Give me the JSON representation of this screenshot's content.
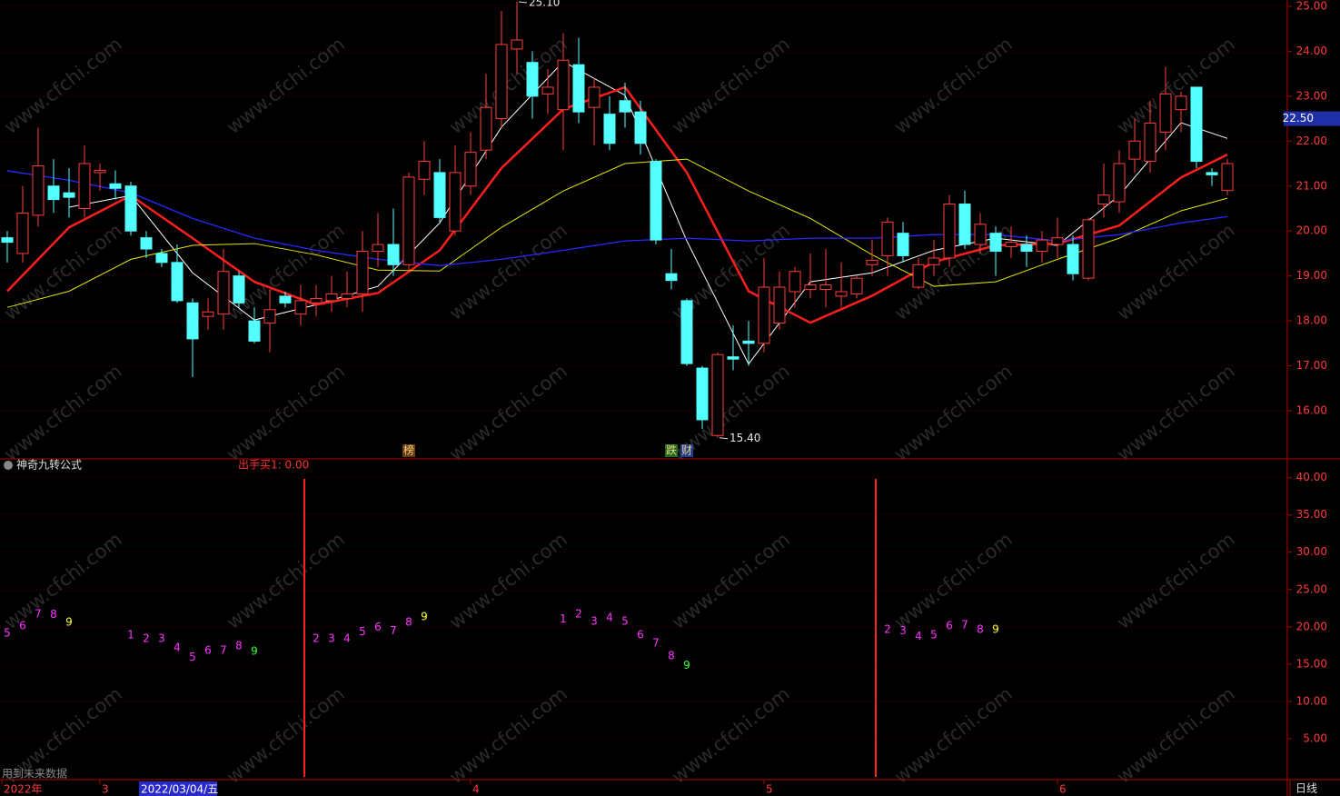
{
  "chart_data": [
    {
      "type": "candlestick",
      "open": [
        19.85,
        19.5,
        20.35,
        21.0,
        20.85,
        20.5,
        21.3,
        21.05,
        21.0,
        19.85,
        19.5,
        19.3,
        18.4,
        18.1,
        18.15,
        19.0,
        18.0,
        17.95,
        18.55,
        18.15,
        18.4,
        18.45,
        18.5,
        18.6,
        19.55,
        19.7,
        19.25,
        21.15,
        21.3,
        20.0,
        21.0,
        21.8,
        22.5,
        24.05,
        23.75,
        23.05,
        22.7,
        23.7,
        22.75,
        22.6,
        22.9,
        22.65,
        21.55,
        19.05,
        18.45,
        16.95,
        15.45,
        17.2,
        17.55,
        17.5,
        17.95,
        18.65,
        18.7,
        18.7,
        18.55,
        18.6,
        19.25,
        19.45,
        19.95,
        18.75,
        19.25,
        19.4,
        20.6,
        19.7,
        19.95,
        19.65,
        19.7,
        19.55,
        19.7,
        19.7,
        18.95,
        20.6,
        20.65,
        21.6,
        21.55,
        22.2,
        22.7,
        23.2,
        21.3,
        20.9
      ],
      "high": [
        20.0,
        21.0,
        22.3,
        21.6,
        21.4,
        21.9,
        21.5,
        21.35,
        21.1,
        20.0,
        19.6,
        19.7,
        18.5,
        18.5,
        19.6,
        19.1,
        18.3,
        18.7,
        18.65,
        18.8,
        18.8,
        19.0,
        19.1,
        20.0,
        20.4,
        20.5,
        21.3,
        22.0,
        21.6,
        21.9,
        22.2,
        23.5,
        24.9,
        25.1,
        24.0,
        23.6,
        24.4,
        24.3,
        23.4,
        23.0,
        23.3,
        22.9,
        21.6,
        19.6,
        18.5,
        17.0,
        17.3,
        17.9,
        18.0,
        19.4,
        19.1,
        19.2,
        19.5,
        19.6,
        19.3,
        19.0,
        19.8,
        20.3,
        20.2,
        19.4,
        19.8,
        20.8,
        20.9,
        20.4,
        20.1,
        20.1,
        19.9,
        20.0,
        20.3,
        19.9,
        20.3,
        21.5,
        21.8,
        22.5,
        22.9,
        23.65,
        23.1,
        23.2,
        21.4,
        21.6
      ],
      "low": [
        19.3,
        19.3,
        20.1,
        20.4,
        20.3,
        20.3,
        20.9,
        20.7,
        19.9,
        19.4,
        19.2,
        18.4,
        16.75,
        17.8,
        17.8,
        18.3,
        17.5,
        17.3,
        18.3,
        17.9,
        18.1,
        18.2,
        18.3,
        18.2,
        19.2,
        19.0,
        19.1,
        20.8,
        20.2,
        19.9,
        20.8,
        21.6,
        22.3,
        23.5,
        22.5,
        22.6,
        21.8,
        22.4,
        21.9,
        21.8,
        22.3,
        21.7,
        19.7,
        18.7,
        17.0,
        15.6,
        15.4,
        16.9,
        17.0,
        17.3,
        17.8,
        18.3,
        18.5,
        18.3,
        18.3,
        18.5,
        19.0,
        19.0,
        19.3,
        18.7,
        19.0,
        19.2,
        19.6,
        19.5,
        19.0,
        19.4,
        19.2,
        19.3,
        19.4,
        18.9,
        18.9,
        20.3,
        20.4,
        21.3,
        21.3,
        21.8,
        22.2,
        21.4,
        21.0,
        20.8
      ],
      "close": [
        19.75,
        20.4,
        21.45,
        20.7,
        20.75,
        21.5,
        21.35,
        20.95,
        20.0,
        19.6,
        19.3,
        18.45,
        17.6,
        18.2,
        19.1,
        18.4,
        17.55,
        18.25,
        18.4,
        18.45,
        18.5,
        18.6,
        18.6,
        19.55,
        19.7,
        19.25,
        21.2,
        21.55,
        20.3,
        21.3,
        21.75,
        22.75,
        24.15,
        24.25,
        23.0,
        23.2,
        23.8,
        22.65,
        23.2,
        21.95,
        22.65,
        21.95,
        19.8,
        18.9,
        17.05,
        15.8,
        17.25,
        17.15,
        17.5,
        18.75,
        18.75,
        19.1,
        18.8,
        18.8,
        18.65,
        18.95,
        19.35,
        20.2,
        19.45,
        19.25,
        19.4,
        20.6,
        19.7,
        20.15,
        19.55,
        19.75,
        19.55,
        19.8,
        19.85,
        19.05,
        20.25,
        20.8,
        21.5,
        22.0,
        22.4,
        23.05,
        23.0,
        21.55,
        21.25,
        21.5
      ],
      "up_color": "#ff3c3c",
      "down_color": "#54ffff",
      "series": [
        {
          "color": "#ffffff",
          "width": 1,
          "x": [
            4,
            8,
            12,
            16,
            20,
            24,
            28,
            32,
            36,
            40,
            44,
            48,
            52,
            56,
            60,
            64,
            68,
            72,
            76,
            79
          ],
          "values": [
            20.53,
            20.79,
            19.07,
            18.02,
            18.36,
            18.77,
            20.18,
            22.31,
            23.77,
            23.02,
            19.78,
            17.04,
            18.87,
            19.07,
            19.57,
            19.84,
            19.68,
            20.79,
            22.41,
            22.06
          ]
        },
        {
          "color": "#ff1e1e",
          "width": 2.5,
          "x": [
            0,
            4,
            8,
            12,
            16,
            20,
            24,
            28,
            32,
            36,
            40,
            44,
            48,
            52,
            56,
            60,
            64,
            68,
            72,
            76,
            79
          ],
          "values": [
            18.66,
            20.08,
            20.79,
            19.84,
            18.87,
            18.36,
            18.62,
            19.57,
            21.4,
            22.71,
            23.2,
            21.3,
            18.66,
            17.96,
            18.56,
            19.31,
            19.68,
            19.72,
            20.12,
            21.19,
            21.7
          ]
        },
        {
          "color": "#e6e600",
          "width": 1,
          "x": [
            0,
            4,
            8,
            12,
            16,
            20,
            24,
            28,
            32,
            36,
            40,
            44,
            48,
            52,
            56,
            60,
            64,
            68,
            72,
            76,
            79
          ],
          "values": [
            18.3,
            18.66,
            19.37,
            19.68,
            19.72,
            19.47,
            19.13,
            19.11,
            20.08,
            20.89,
            21.5,
            21.6,
            20.89,
            20.28,
            19.47,
            18.77,
            18.87,
            19.37,
            19.84,
            20.45,
            20.73
          ]
        },
        {
          "color": "#2828ff",
          "width": 1.3,
          "x": [
            0,
            4,
            8,
            12,
            16,
            20,
            24,
            28,
            32,
            36,
            40,
            44,
            48,
            52,
            56,
            60,
            64,
            68,
            72,
            76,
            79
          ],
          "values": [
            21.34,
            21.13,
            20.85,
            20.28,
            19.84,
            19.57,
            19.37,
            19.23,
            19.37,
            19.57,
            19.78,
            19.84,
            19.78,
            19.84,
            19.84,
            19.92,
            19.92,
            19.78,
            19.92,
            20.18,
            20.32
          ]
        }
      ],
      "ylim": [
        14.97,
        25.14
      ],
      "yticks": [
        {
          "value": 16,
          "label": "16.00"
        },
        {
          "value": 17,
          "label": "17.00"
        },
        {
          "value": 18,
          "label": "18.00"
        },
        {
          "value": 19,
          "label": "19.00"
        },
        {
          "value": 20,
          "label": "20.00"
        },
        {
          "value": 21,
          "label": "21.00"
        },
        {
          "value": 22,
          "label": "22.00"
        },
        {
          "value": 23,
          "label": "23.00"
        },
        {
          "value": 24,
          "label": "24.00"
        },
        {
          "value": 25,
          "label": "25.00"
        }
      ],
      "grid": true,
      "annotations": [
        {
          "index": 33,
          "value": 25.1,
          "label": "25.10"
        },
        {
          "index": 46,
          "value": 15.4,
          "label": "15.40"
        }
      ],
      "price_label": {
        "value": 22.5,
        "label": "22.50"
      },
      "markers": [
        {
          "index": 26,
          "label": "榜",
          "color": "#6a3a10"
        },
        {
          "index": 43,
          "label": "跌",
          "color": "#1f6b1f"
        },
        {
          "index": 44,
          "label": "财",
          "color": "#1f3f8f"
        }
      ],
      "xticks": [
        {
          "value": 0,
          "label": "2022年"
        },
        {
          "value": 6,
          "label": "3"
        },
        {
          "value": 30,
          "label": "4"
        },
        {
          "value": 49,
          "label": "5"
        },
        {
          "value": 68,
          "label": "6"
        }
      ],
      "cursor_date": {
        "value": 9,
        "label": "2022/03/04/五"
      }
    },
    {
      "type": "count_labels",
      "title": "神奇九转公式",
      "legend_text": "出手买1: 0.00",
      "ylim": [
        -0.5,
        42.4
      ],
      "yticks": [
        {
          "value": 5,
          "label": "5.00"
        },
        {
          "value": 10,
          "label": "10.00"
        },
        {
          "value": 15,
          "label": "15.00"
        },
        {
          "value": 20,
          "label": "20.00"
        },
        {
          "value": 25,
          "label": "25.00"
        },
        {
          "value": 30,
          "label": "30.00"
        },
        {
          "value": 35,
          "label": "35.00"
        },
        {
          "value": 40,
          "label": "40.00"
        }
      ],
      "grid": true,
      "signals": [
        19,
        56
      ],
      "signal_color": "#ff2020",
      "groups": [
        {
          "start": 0,
          "counts": [
            5,
            6,
            7,
            8,
            9
          ],
          "values": [
            19.15,
            20.1,
            21.7,
            21.6,
            20.6
          ],
          "color": "#ff33ff",
          "last_color": "#ffff33"
        },
        {
          "start": 8,
          "counts": [
            1,
            2,
            3,
            4,
            5,
            6,
            7,
            8,
            9
          ],
          "values": [
            18.9,
            18.4,
            18.4,
            17.2,
            15.9,
            16.8,
            16.8,
            17.4,
            16.7
          ],
          "color": "#ff33ff",
          "last_color": "#33ff33"
        },
        {
          "start": 20,
          "counts": [
            2,
            3,
            4,
            5,
            6,
            7,
            8,
            9
          ],
          "values": [
            18.4,
            18.4,
            18.4,
            19.3,
            19.9,
            19.4,
            20.6,
            21.3
          ],
          "color": "#ff33ff",
          "last_color": "#ffff33"
        },
        {
          "start": 36,
          "counts": [
            1,
            2,
            3,
            4,
            5,
            6,
            7,
            8,
            9
          ],
          "values": [
            21.0,
            21.7,
            20.7,
            21.2,
            20.7,
            18.9,
            17.8,
            16.1,
            14.8
          ],
          "color": "#ff33ff",
          "last_color": "#33ff33"
        },
        {
          "start": 57,
          "counts": [
            2,
            3,
            4,
            5,
            6,
            7,
            8,
            9
          ],
          "values": [
            19.6,
            19.4,
            18.7,
            18.9,
            20.1,
            20.2,
            19.6,
            19.6
          ],
          "color": "#ff33ff",
          "last_color": "#ffff33"
        }
      ]
    }
  ],
  "note": "用到未来数据",
  "period": "日线",
  "watermark": "www.cfchi.com"
}
